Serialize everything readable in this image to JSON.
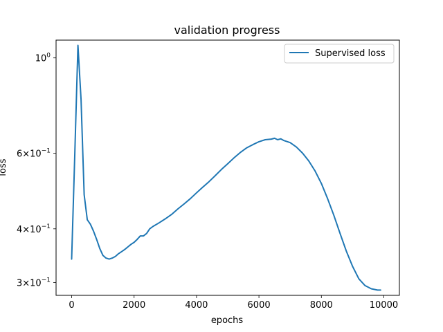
{
  "chart_data": {
    "type": "line",
    "title": "validation progress",
    "xlabel": "epochs",
    "ylabel": "loss",
    "xlim": [
      -500,
      10500
    ],
    "ylim": [
      0.28,
      1.1
    ],
    "yscale": "log",
    "x_ticks": [
      0,
      2000,
      4000,
      6000,
      8000,
      10000
    ],
    "x_tick_labels": [
      "0",
      "2000",
      "4000",
      "6000",
      "8000",
      "10000"
    ],
    "y_ticks": [
      1.0,
      0.6,
      0.4,
      0.3
    ],
    "y_tick_base": [
      "10",
      "6×10",
      "4×10",
      "3×10"
    ],
    "y_tick_exp": [
      "0",
      "−1",
      "−1",
      "−1"
    ],
    "grid": false,
    "legend_position": "upper right",
    "series": [
      {
        "name": "Supervised loss",
        "color": "#1f77b4",
        "x": [
          0,
          100,
          200,
          300,
          400,
          500,
          600,
          700,
          800,
          900,
          1000,
          1100,
          1200,
          1300,
          1400,
          1500,
          1600,
          1700,
          1800,
          1900,
          2000,
          2100,
          2200,
          2300,
          2400,
          2500,
          2600,
          2800,
          3000,
          3200,
          3400,
          3600,
          3800,
          4000,
          4200,
          4400,
          4600,
          4800,
          5000,
          5200,
          5400,
          5600,
          5800,
          6000,
          6200,
          6400,
          6500,
          6600,
          6700,
          6800,
          7000,
          7200,
          7400,
          7600,
          7800,
          8000,
          8200,
          8400,
          8600,
          8800,
          9000,
          9200,
          9400,
          9600,
          9800,
          9900
        ],
        "values": [
          0.34,
          0.6,
          1.07,
          0.8,
          0.48,
          0.42,
          0.41,
          0.395,
          0.378,
          0.36,
          0.347,
          0.342,
          0.34,
          0.342,
          0.345,
          0.35,
          0.354,
          0.358,
          0.363,
          0.368,
          0.372,
          0.378,
          0.385,
          0.385,
          0.39,
          0.4,
          0.405,
          0.413,
          0.422,
          0.432,
          0.445,
          0.457,
          0.47,
          0.485,
          0.5,
          0.515,
          0.532,
          0.55,
          0.567,
          0.585,
          0.602,
          0.617,
          0.628,
          0.638,
          0.645,
          0.647,
          0.65,
          0.645,
          0.648,
          0.642,
          0.635,
          0.62,
          0.6,
          0.575,
          0.545,
          0.51,
          0.47,
          0.43,
          0.39,
          0.355,
          0.327,
          0.306,
          0.295,
          0.29,
          0.288,
          0.288
        ]
      }
    ]
  }
}
